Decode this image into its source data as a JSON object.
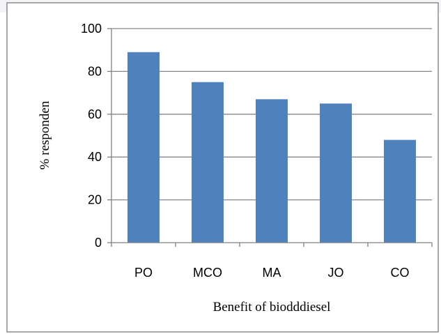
{
  "colors": {
    "bar": "#4f81bd",
    "axis": "#808080",
    "grid": "#868686",
    "frame": "#8c8c8c"
  },
  "chart_data": {
    "type": "bar",
    "categories": [
      "PO",
      "MCO",
      "MA",
      "JO",
      "CO"
    ],
    "values": [
      89,
      75,
      67,
      65,
      48
    ],
    "xlabel": "Benefit of biodddiesel",
    "ylabel": "% responden",
    "ylim": [
      0,
      100
    ],
    "yticks": [
      0,
      20,
      40,
      60,
      80,
      100
    ],
    "grid": true,
    "legend": "none"
  }
}
